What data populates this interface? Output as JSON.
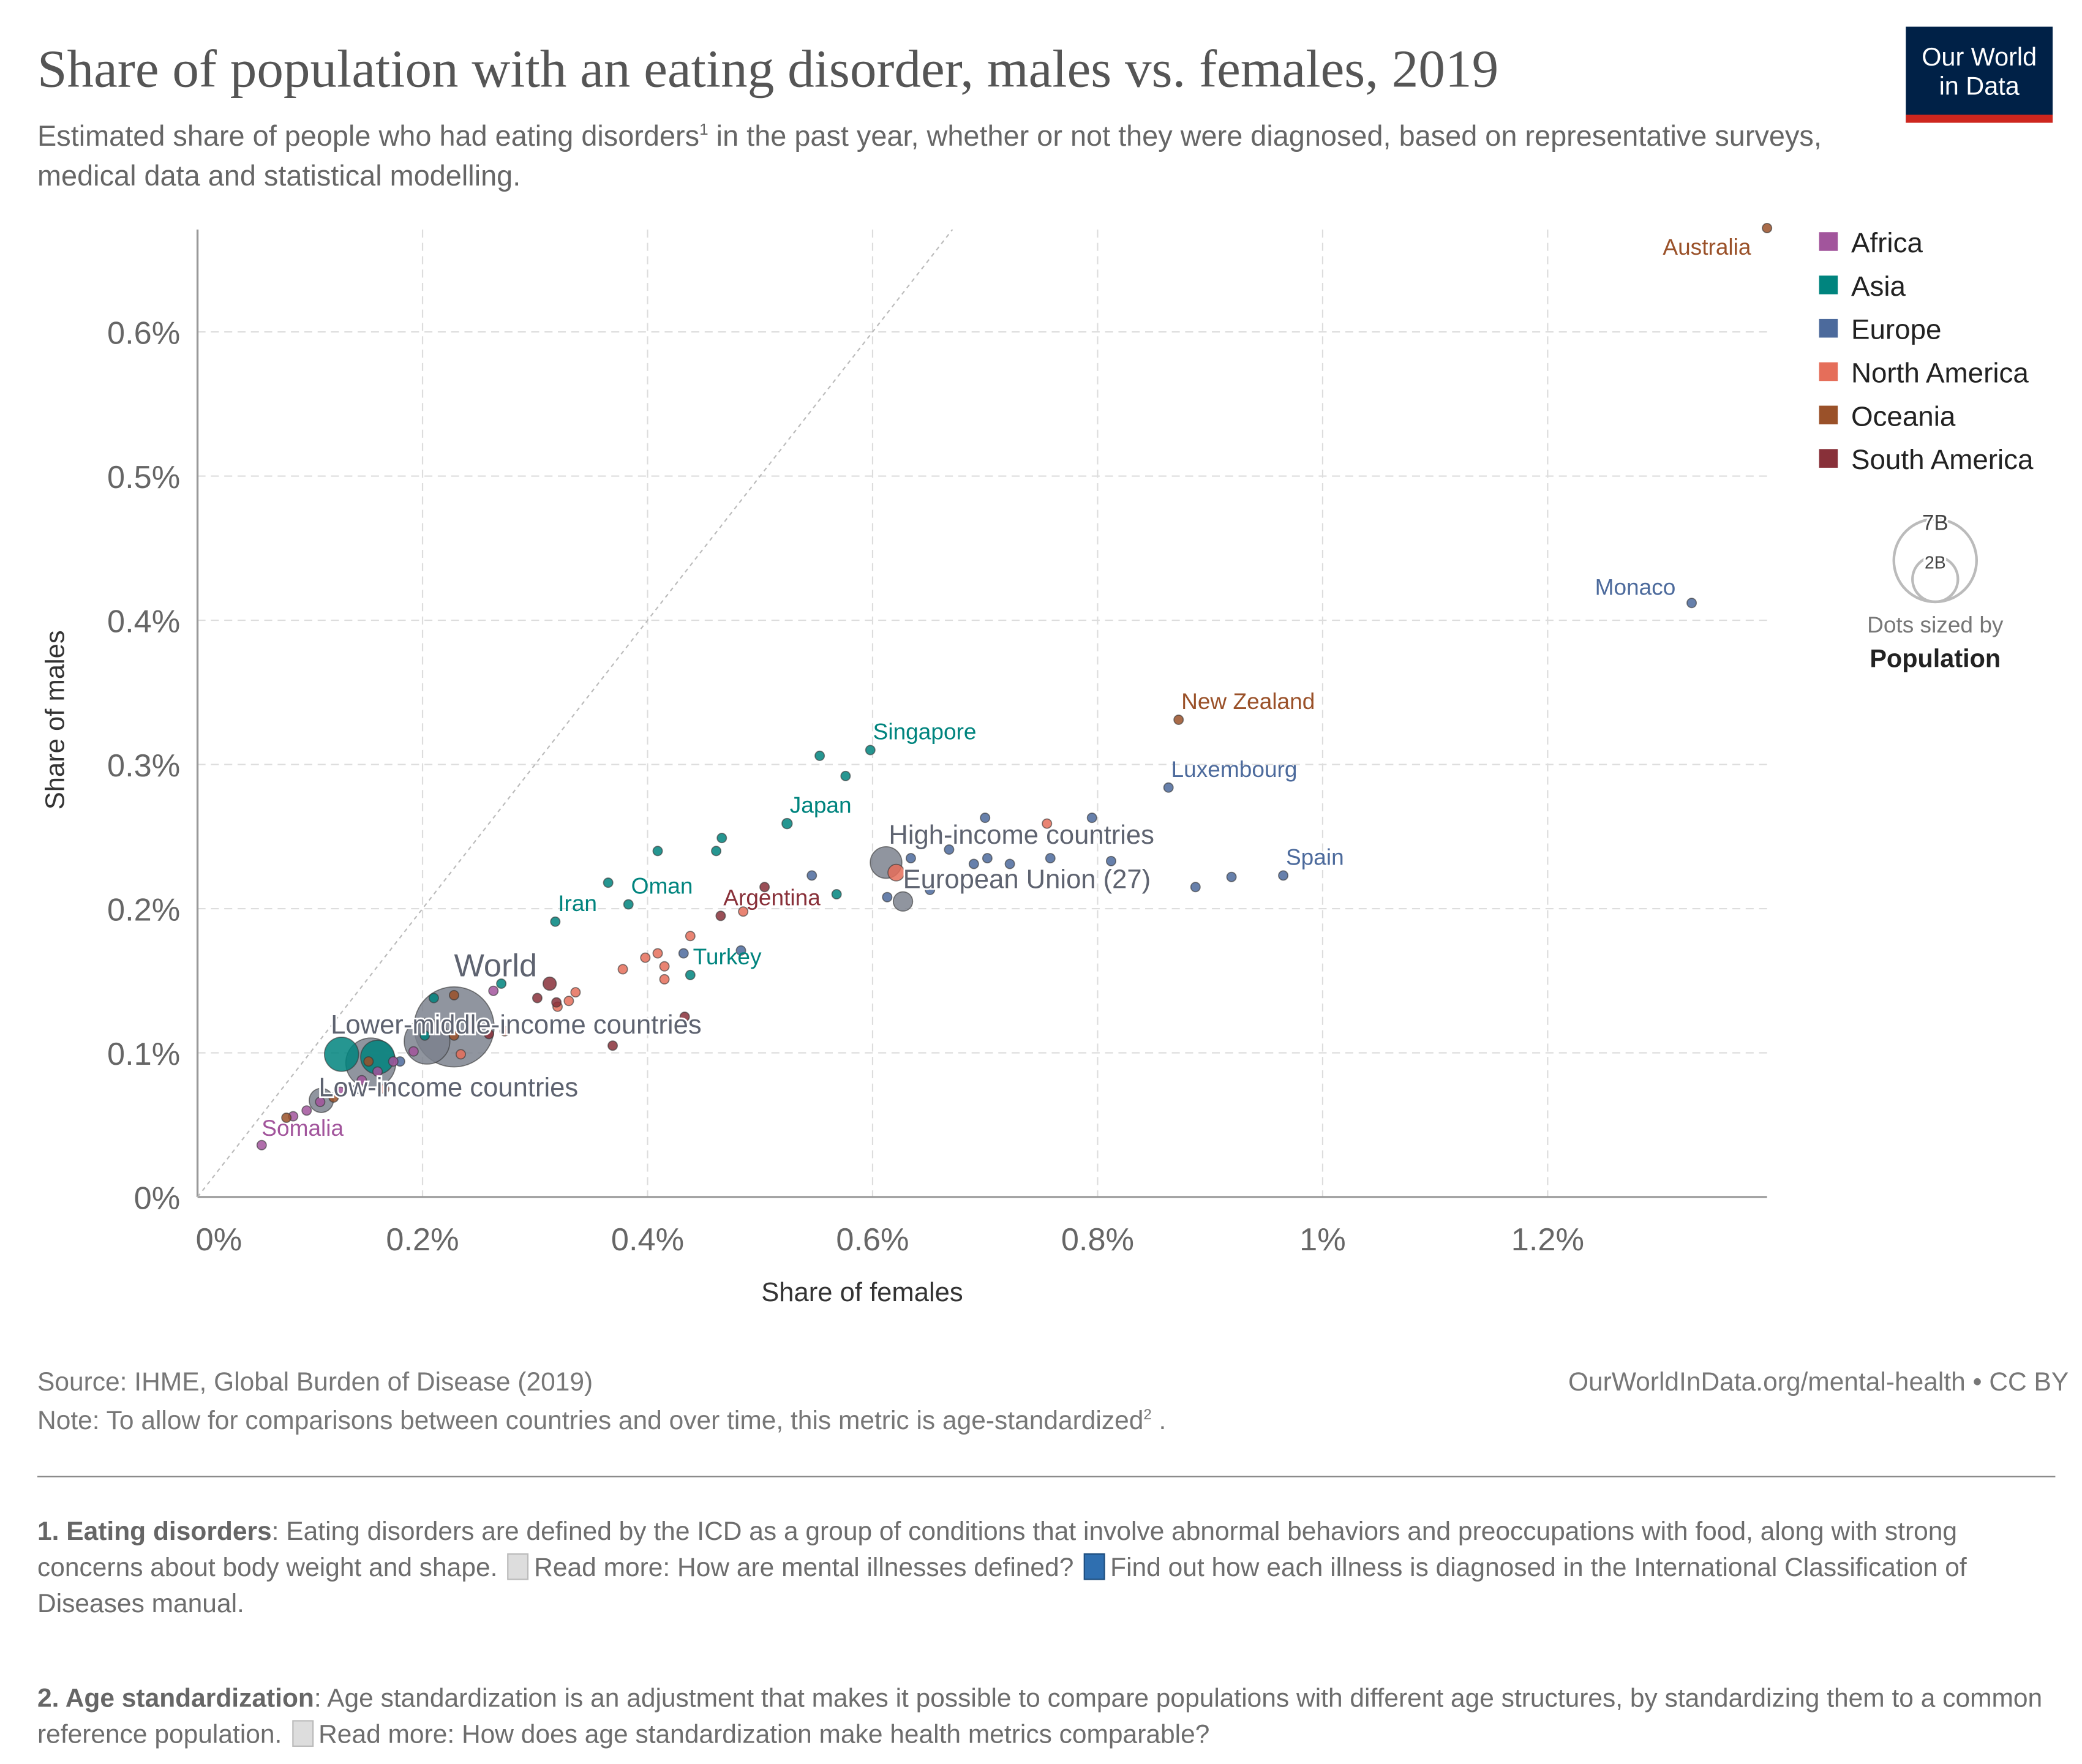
{
  "header": {
    "title": "Share of population with an eating disorder, males vs. females, 2019",
    "subtitle": "Estimated share of people who had eating disorders",
    "subtitle_sup": "1",
    "subtitle_rest": " in the past year, whether or not they were diagnosed, based on representative surveys, medical data and statistical modelling.",
    "logo_line1": "Our World",
    "logo_line2": "in Data"
  },
  "chart_data": {
    "type": "scatter",
    "xlabel": "Share of females",
    "ylabel": "Share of males",
    "xlim": [
      0,
      1.395
    ],
    "ylim": [
      0,
      0.671
    ],
    "x_ticks": [
      {
        "v": 0,
        "label": "0%"
      },
      {
        "v": 0.2,
        "label": "0.2%"
      },
      {
        "v": 0.4,
        "label": "0.4%"
      },
      {
        "v": 0.6,
        "label": "0.6%"
      },
      {
        "v": 0.8,
        "label": "0.8%"
      },
      {
        "v": 1.0,
        "label": "1%"
      },
      {
        "v": 1.2,
        "label": "1.2%"
      }
    ],
    "y_ticks": [
      {
        "v": 0,
        "label": "0%"
      },
      {
        "v": 0.1,
        "label": "0.1%"
      },
      {
        "v": 0.2,
        "label": "0.2%"
      },
      {
        "v": 0.3,
        "label": "0.3%"
      },
      {
        "v": 0.4,
        "label": "0.4%"
      },
      {
        "v": 0.5,
        "label": "0.5%"
      },
      {
        "v": 0.6,
        "label": "0.6%"
      }
    ],
    "grid": true,
    "reference_line": "y = x",
    "legend": {
      "placement": "right",
      "items": [
        {
          "name": "Africa",
          "color": "#a2559c"
        },
        {
          "name": "Asia",
          "color": "#00847e"
        },
        {
          "name": "Europe",
          "color": "#4c6a9c"
        },
        {
          "name": "North America",
          "color": "#e56e5a"
        },
        {
          "name": "Oceania",
          "color": "#9a5129"
        },
        {
          "name": "South America",
          "color": "#883039"
        }
      ],
      "aggregate_color": "#7d828e"
    },
    "size_legend": {
      "large": "7B",
      "small": "2B",
      "caption": "Dots sized by",
      "variable": "Population"
    },
    "points": [
      {
        "label": "Australia",
        "x": 1.395,
        "y": 0.672,
        "region": "Oceania",
        "pop": 0.025
      },
      {
        "label": "Monaco",
        "x": 1.328,
        "y": 0.412,
        "region": "Europe",
        "pop": 4e-05
      },
      {
        "label": "New Zealand",
        "x": 0.872,
        "y": 0.331,
        "region": "Oceania",
        "pop": 0.005
      },
      {
        "label": "Luxembourg",
        "x": 0.863,
        "y": 0.284,
        "region": "Europe",
        "pop": 0.0006
      },
      {
        "label": "Spain",
        "x": 0.965,
        "y": 0.223,
        "region": "Europe",
        "pop": 0.047
      },
      {
        "label": "Singapore",
        "x": 0.598,
        "y": 0.31,
        "region": "Asia",
        "pop": 0.006
      },
      {
        "label": "Japan",
        "x": 0.524,
        "y": 0.259,
        "region": "Asia",
        "pop": 0.126
      },
      {
        "label": "High-income countries",
        "x": 0.612,
        "y": 0.232,
        "region": "Aggregate",
        "pop": 1.2
      },
      {
        "label": "European Union (27)",
        "x": 0.627,
        "y": 0.205,
        "region": "Aggregate",
        "pop": 0.45
      },
      {
        "label": "Argentina",
        "x": 0.465,
        "y": 0.195,
        "region": "South America",
        "pop": 0.045
      },
      {
        "label": "Iran",
        "x": 0.318,
        "y": 0.191,
        "region": "Asia",
        "pop": 0.083
      },
      {
        "label": "Oman",
        "x": 0.383,
        "y": 0.203,
        "region": "Asia",
        "pop": 0.005
      },
      {
        "label": "Turkey",
        "x": 0.438,
        "y": 0.154,
        "region": "Asia",
        "pop": 0.083
      },
      {
        "label": "World",
        "x": 0.228,
        "y": 0.118,
        "region": "Aggregate",
        "pop": 7.7
      },
      {
        "label": "",
        "x": 0.204,
        "y": 0.108,
        "region": "Aggregate",
        "pop": 2.5
      },
      {
        "label": "Lower-middle-income countries",
        "x": 0.154,
        "y": 0.093,
        "region": "Aggregate",
        "pop": 3.0
      },
      {
        "label": "Low-income countries",
        "x": 0.11,
        "y": 0.067,
        "region": "Aggregate",
        "pop": 0.7
      },
      {
        "label": "",
        "x": 0.128,
        "y": 0.099,
        "region": "Asia",
        "pop": 1.4
      },
      {
        "label": "",
        "x": 0.16,
        "y": 0.097,
        "region": "Asia",
        "pop": 1.37
      },
      {
        "label": "Somalia",
        "x": 0.057,
        "y": 0.036,
        "region": "Africa",
        "pop": 0.015
      },
      {
        "label": "",
        "x": 0.7,
        "y": 0.263,
        "region": "Europe",
        "pop": 0.01
      },
      {
        "label": "",
        "x": 0.795,
        "y": 0.263,
        "region": "Europe",
        "pop": 0.01
      },
      {
        "label": "",
        "x": 0.668,
        "y": 0.241,
        "region": "Europe",
        "pop": 0.01
      },
      {
        "label": "",
        "x": 0.634,
        "y": 0.235,
        "region": "Europe",
        "pop": 0.01
      },
      {
        "label": "",
        "x": 0.702,
        "y": 0.235,
        "region": "Europe",
        "pop": 0.01
      },
      {
        "label": "",
        "x": 0.722,
        "y": 0.231,
        "region": "Europe",
        "pop": 0.01
      },
      {
        "label": "",
        "x": 0.758,
        "y": 0.235,
        "region": "Europe",
        "pop": 0.01
      },
      {
        "label": "",
        "x": 0.812,
        "y": 0.233,
        "region": "Europe",
        "pop": 0.01
      },
      {
        "label": "",
        "x": 0.69,
        "y": 0.231,
        "region": "Europe",
        "pop": 0.01
      },
      {
        "label": "",
        "x": 0.546,
        "y": 0.223,
        "region": "Europe",
        "pop": 0.01
      },
      {
        "label": "",
        "x": 0.919,
        "y": 0.222,
        "region": "Europe",
        "pop": 0.01
      },
      {
        "label": "",
        "x": 0.887,
        "y": 0.215,
        "region": "Europe",
        "pop": 0.01
      },
      {
        "label": "",
        "x": 0.651,
        "y": 0.213,
        "region": "Europe",
        "pop": 0.01
      },
      {
        "label": "",
        "x": 0.613,
        "y": 0.208,
        "region": "Europe",
        "pop": 0.01
      },
      {
        "label": "",
        "x": 0.432,
        "y": 0.169,
        "region": "Europe",
        "pop": 0.01
      },
      {
        "label": "",
        "x": 0.483,
        "y": 0.171,
        "region": "Europe",
        "pop": 0.01
      },
      {
        "label": "",
        "x": 0.18,
        "y": 0.094,
        "region": "Europe",
        "pop": 0.01
      },
      {
        "label": "",
        "x": 0.142,
        "y": 0.075,
        "region": "Europe",
        "pop": 0.01
      },
      {
        "label": "",
        "x": 0.755,
        "y": 0.259,
        "region": "North America",
        "pop": 0.01
      },
      {
        "label": "",
        "x": 0.621,
        "y": 0.225,
        "region": "North America",
        "pop": 0.33
      },
      {
        "label": "",
        "x": 0.438,
        "y": 0.181,
        "region": "North America",
        "pop": 0.01
      },
      {
        "label": "",
        "x": 0.398,
        "y": 0.166,
        "region": "North America",
        "pop": 0.01
      },
      {
        "label": "",
        "x": 0.409,
        "y": 0.169,
        "region": "North America",
        "pop": 0.01
      },
      {
        "label": "",
        "x": 0.415,
        "y": 0.16,
        "region": "North America",
        "pop": 0.01
      },
      {
        "label": "",
        "x": 0.415,
        "y": 0.151,
        "region": "North America",
        "pop": 0.01
      },
      {
        "label": "",
        "x": 0.378,
        "y": 0.158,
        "region": "North America",
        "pop": 0.01
      },
      {
        "label": "",
        "x": 0.485,
        "y": 0.198,
        "region": "North America",
        "pop": 0.01
      },
      {
        "label": "",
        "x": 0.336,
        "y": 0.142,
        "region": "North America",
        "pop": 0.01
      },
      {
        "label": "",
        "x": 0.33,
        "y": 0.136,
        "region": "North America",
        "pop": 0.01
      },
      {
        "label": "",
        "x": 0.32,
        "y": 0.132,
        "region": "North America",
        "pop": 0.01
      },
      {
        "label": "",
        "x": 0.166,
        "y": 0.075,
        "region": "North America",
        "pop": 0.01
      },
      {
        "label": "",
        "x": 0.234,
        "y": 0.099,
        "region": "North America",
        "pop": 0.01
      },
      {
        "label": "",
        "x": 0.273,
        "y": 0.115,
        "region": "North America",
        "pop": 0.01
      },
      {
        "label": "",
        "x": 0.553,
        "y": 0.306,
        "region": "Asia",
        "pop": 0.01
      },
      {
        "label": "",
        "x": 0.576,
        "y": 0.292,
        "region": "Asia",
        "pop": 0.01
      },
      {
        "label": "",
        "x": 0.466,
        "y": 0.249,
        "region": "Asia",
        "pop": 0.01
      },
      {
        "label": "",
        "x": 0.461,
        "y": 0.24,
        "region": "Asia",
        "pop": 0.01
      },
      {
        "label": "",
        "x": 0.409,
        "y": 0.24,
        "region": "Asia",
        "pop": 0.01
      },
      {
        "label": "",
        "x": 0.365,
        "y": 0.218,
        "region": "Asia",
        "pop": 0.01
      },
      {
        "label": "",
        "x": 0.568,
        "y": 0.21,
        "region": "Asia",
        "pop": 0.01
      },
      {
        "label": "",
        "x": 0.27,
        "y": 0.148,
        "region": "Asia",
        "pop": 0.01
      },
      {
        "label": "",
        "x": 0.21,
        "y": 0.138,
        "region": "Asia",
        "pop": 0.01
      },
      {
        "label": "",
        "x": 0.202,
        "y": 0.112,
        "region": "Asia",
        "pop": 0.01
      },
      {
        "label": "",
        "x": 0.504,
        "y": 0.215,
        "region": "South America",
        "pop": 0.01
      },
      {
        "label": "",
        "x": 0.313,
        "y": 0.148,
        "region": "South America",
        "pop": 0.21
      },
      {
        "label": "",
        "x": 0.302,
        "y": 0.138,
        "region": "South America",
        "pop": 0.01
      },
      {
        "label": "",
        "x": 0.319,
        "y": 0.135,
        "region": "South America",
        "pop": 0.01
      },
      {
        "label": "",
        "x": 0.369,
        "y": 0.105,
        "region": "South America",
        "pop": 0.01
      },
      {
        "label": "",
        "x": 0.433,
        "y": 0.125,
        "region": "South America",
        "pop": 0.01
      },
      {
        "label": "",
        "x": 0.259,
        "y": 0.113,
        "region": "South America",
        "pop": 0.01
      },
      {
        "label": "",
        "x": 0.263,
        "y": 0.143,
        "region": "Africa",
        "pop": 0.01
      },
      {
        "label": "",
        "x": 0.174,
        "y": 0.094,
        "region": "Africa",
        "pop": 0.01
      },
      {
        "label": "",
        "x": 0.16,
        "y": 0.087,
        "region": "Africa",
        "pop": 0.01
      },
      {
        "label": "",
        "x": 0.146,
        "y": 0.081,
        "region": "Africa",
        "pop": 0.01
      },
      {
        "label": "",
        "x": 0.127,
        "y": 0.073,
        "region": "Africa",
        "pop": 0.01
      },
      {
        "label": "",
        "x": 0.109,
        "y": 0.066,
        "region": "Africa",
        "pop": 0.01
      },
      {
        "label": "",
        "x": 0.097,
        "y": 0.06,
        "region": "Africa",
        "pop": 0.01
      },
      {
        "label": "",
        "x": 0.085,
        "y": 0.056,
        "region": "Africa",
        "pop": 0.01
      },
      {
        "label": "",
        "x": 0.242,
        "y": 0.118,
        "region": "Africa",
        "pop": 0.01
      },
      {
        "label": "",
        "x": 0.192,
        "y": 0.101,
        "region": "Africa",
        "pop": 0.01
      },
      {
        "label": "",
        "x": 0.228,
        "y": 0.14,
        "region": "Oceania",
        "pop": 0.01
      },
      {
        "label": "",
        "x": 0.121,
        "y": 0.069,
        "region": "Oceania",
        "pop": 0.01
      },
      {
        "label": "",
        "x": 0.079,
        "y": 0.055,
        "region": "Oceania",
        "pop": 0.01
      },
      {
        "label": "",
        "x": 0.152,
        "y": 0.094,
        "region": "Oceania",
        "pop": 0.01
      },
      {
        "label": "",
        "x": 0.228,
        "y": 0.112,
        "region": "Oceania",
        "pop": 0.01
      }
    ]
  },
  "footer": {
    "source": "Source: IHME, Global Burden of Disease (2019)",
    "url": "OurWorldInData.org/mental-health",
    "license": " • CC BY",
    "note": "Note: To allow for comparisons between countries and over time, this metric is ",
    "note_link": "age-standardized",
    "note_sup": "2",
    "note_end": " ."
  },
  "notes": [
    {
      "title": "1. Eating disorders",
      "text": ": Eating disorders are defined by the ICD as a group of conditions that involve abnormal behaviors and preoccupations with food, along with strong concerns about body weight and shape. ",
      "link1": "Read more: How are mental illnesses defined?",
      "link2": "Find out how each illness is diagnosed in the International Classification of Diseases manual."
    },
    {
      "title": "2. Age standardization",
      "text": ": Age standardization is an adjustment that makes it possible to compare populations with different age structures, by standardizing them to a common reference population. ",
      "link1": "Read more: How does age standardization make health metrics comparable?"
    }
  ]
}
